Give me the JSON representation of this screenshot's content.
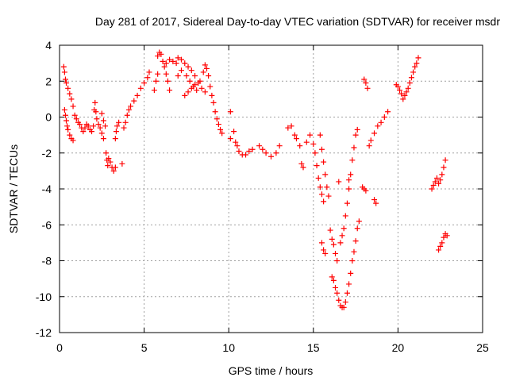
{
  "chart_data": {
    "type": "scatter",
    "title": "Day 281 of 2017, Sidereal Day-to-day VTEC variation (SDTVAR) for receiver msdr",
    "xlabel": "GPS time / hours",
    "ylabel": "SDTVAR / TECUs",
    "xlim": [
      0,
      25
    ],
    "ylim": [
      -12,
      4
    ],
    "xticks": [
      0,
      5,
      10,
      15,
      20,
      25
    ],
    "yticks": [
      -12,
      -10,
      -8,
      -6,
      -4,
      -2,
      0,
      2,
      4
    ],
    "xtick_labels": [
      "0",
      "5",
      "10",
      "15",
      "20",
      "25"
    ],
    "ytick_labels": [
      "-12",
      "-10",
      "-8",
      "-6",
      "-4",
      "-2",
      "0",
      "2",
      "4"
    ],
    "grid": true,
    "marker": "plus",
    "color": "#ff0000",
    "series": [
      {
        "points": [
          [
            0.25,
            2.8
          ],
          [
            0.3,
            2.5
          ],
          [
            0.35,
            2.1
          ],
          [
            0.4,
            1.9
          ],
          [
            0.5,
            1.6
          ],
          [
            0.6,
            1.3
          ],
          [
            0.7,
            1.0
          ],
          [
            0.8,
            0.6
          ],
          [
            0.3,
            0.4
          ],
          [
            0.35,
            0.1
          ],
          [
            0.4,
            -0.2
          ],
          [
            0.45,
            -0.5
          ],
          [
            0.5,
            -0.7
          ],
          [
            0.6,
            -1.0
          ],
          [
            0.7,
            -1.2
          ],
          [
            0.8,
            -1.3
          ],
          [
            0.9,
            0.1
          ],
          [
            1.0,
            -0.1
          ],
          [
            1.1,
            -0.3
          ],
          [
            1.2,
            -0.4
          ],
          [
            1.3,
            -0.6
          ],
          [
            1.4,
            -0.8
          ],
          [
            1.5,
            -0.6
          ],
          [
            1.6,
            -0.4
          ],
          [
            1.7,
            -0.5
          ],
          [
            1.8,
            -0.7
          ],
          [
            1.9,
            -0.8
          ],
          [
            2.0,
            -0.5
          ],
          [
            2.05,
            0.4
          ],
          [
            2.1,
            0.8
          ],
          [
            2.15,
            0.3
          ],
          [
            2.2,
            -0.1
          ],
          [
            2.3,
            -0.4
          ],
          [
            2.4,
            -0.6
          ],
          [
            2.5,
            -0.9
          ],
          [
            2.6,
            -1.2
          ],
          [
            2.5,
            0.2
          ],
          [
            2.6,
            -0.2
          ],
          [
            2.7,
            -0.5
          ],
          [
            2.75,
            -2.0
          ],
          [
            2.8,
            -2.4
          ],
          [
            2.85,
            -2.7
          ],
          [
            2.9,
            -2.3
          ],
          [
            3.0,
            -2.5
          ],
          [
            3.1,
            -2.8
          ],
          [
            3.2,
            -3.0
          ],
          [
            3.3,
            -2.8
          ],
          [
            3.3,
            -1.2
          ],
          [
            3.35,
            -0.8
          ],
          [
            3.4,
            -0.5
          ],
          [
            3.5,
            -0.3
          ],
          [
            3.7,
            -2.6
          ],
          [
            3.8,
            -0.6
          ],
          [
            3.9,
            -0.3
          ],
          [
            4.0,
            0.1
          ],
          [
            4.1,
            0.4
          ],
          [
            4.2,
            0.6
          ],
          [
            4.4,
            0.9
          ],
          [
            4.6,
            1.2
          ],
          [
            4.8,
            1.6
          ],
          [
            5.0,
            1.9
          ],
          [
            5.2,
            2.2
          ],
          [
            5.3,
            2.5
          ],
          [
            5.6,
            1.5
          ],
          [
            5.7,
            2.0
          ],
          [
            5.8,
            2.4
          ],
          [
            5.8,
            3.4
          ],
          [
            5.9,
            3.6
          ],
          [
            6.0,
            3.5
          ],
          [
            6.1,
            3.1
          ],
          [
            6.2,
            2.8
          ],
          [
            6.3,
            2.4
          ],
          [
            6.4,
            2.0
          ],
          [
            6.5,
            1.5
          ],
          [
            6.3,
            3.0
          ],
          [
            6.5,
            3.2
          ],
          [
            6.7,
            3.1
          ],
          [
            6.9,
            3.0
          ],
          [
            7.0,
            3.3
          ],
          [
            7.2,
            3.2
          ],
          [
            7.4,
            3.0
          ],
          [
            7.6,
            2.8
          ],
          [
            7.8,
            2.6
          ],
          [
            8.0,
            2.3
          ],
          [
            8.2,
            1.9
          ],
          [
            8.4,
            1.6
          ],
          [
            8.6,
            1.4
          ],
          [
            7.0,
            2.3
          ],
          [
            7.2,
            2.6
          ],
          [
            7.5,
            2.3
          ],
          [
            7.7,
            2.0
          ],
          [
            7.9,
            1.7
          ],
          [
            8.1,
            1.5
          ],
          [
            7.4,
            1.2
          ],
          [
            7.6,
            1.4
          ],
          [
            7.8,
            1.6
          ],
          [
            8.0,
            1.8
          ],
          [
            8.3,
            2.0
          ],
          [
            8.5,
            2.5
          ],
          [
            8.6,
            2.9
          ],
          [
            8.7,
            2.7
          ],
          [
            8.8,
            2.3
          ],
          [
            8.9,
            1.7
          ],
          [
            9.0,
            1.2
          ],
          [
            9.1,
            0.8
          ],
          [
            9.2,
            0.3
          ],
          [
            9.3,
            -0.1
          ],
          [
            9.4,
            -0.4
          ],
          [
            9.5,
            -0.7
          ],
          [
            9.6,
            -0.9
          ],
          [
            10.1,
            -1.2
          ],
          [
            10.1,
            0.3
          ],
          [
            10.3,
            -0.8
          ],
          [
            10.4,
            -1.4
          ],
          [
            10.5,
            -1.6
          ],
          [
            10.6,
            -1.9
          ],
          [
            10.8,
            -2.1
          ],
          [
            11.0,
            -2.1
          ],
          [
            11.2,
            -1.9
          ],
          [
            11.4,
            -1.8
          ],
          [
            11.8,
            -1.6
          ],
          [
            12.0,
            -1.8
          ],
          [
            12.2,
            -2.0
          ],
          [
            12.5,
            -2.2
          ],
          [
            12.8,
            -2.0
          ],
          [
            13.0,
            -1.6
          ],
          [
            13.5,
            -0.6
          ],
          [
            13.7,
            -0.5
          ],
          [
            13.9,
            -1.0
          ],
          [
            14.0,
            -1.2
          ],
          [
            14.2,
            -1.6
          ],
          [
            14.3,
            -2.6
          ],
          [
            14.4,
            -2.8
          ],
          [
            14.6,
            -1.4
          ],
          [
            14.8,
            -1.0
          ],
          [
            15.0,
            -1.5
          ],
          [
            15.1,
            -2.0
          ],
          [
            15.2,
            -2.7
          ],
          [
            15.3,
            -3.4
          ],
          [
            15.4,
            -3.9
          ],
          [
            15.5,
            -4.3
          ],
          [
            15.6,
            -4.7
          ],
          [
            15.4,
            -1.0
          ],
          [
            15.5,
            -1.8
          ],
          [
            15.6,
            -2.5
          ],
          [
            15.7,
            -3.2
          ],
          [
            15.8,
            -3.9
          ],
          [
            15.9,
            -4.4
          ],
          [
            15.5,
            -7.0
          ],
          [
            15.6,
            -7.4
          ],
          [
            15.7,
            -7.6
          ],
          [
            16.0,
            -6.3
          ],
          [
            16.1,
            -6.8
          ],
          [
            16.2,
            -7.1
          ],
          [
            16.3,
            -7.6
          ],
          [
            16.4,
            -8.0
          ],
          [
            16.1,
            -8.9
          ],
          [
            16.2,
            -9.1
          ],
          [
            16.3,
            -9.5
          ],
          [
            16.4,
            -9.8
          ],
          [
            16.5,
            -10.2
          ],
          [
            16.6,
            -10.5
          ],
          [
            16.7,
            -10.6
          ],
          [
            16.8,
            -10.6
          ],
          [
            16.9,
            -10.3
          ],
          [
            17.0,
            -9.8
          ],
          [
            17.1,
            -9.3
          ],
          [
            17.2,
            -8.7
          ],
          [
            17.3,
            -8.0
          ],
          [
            17.4,
            -7.5
          ],
          [
            17.5,
            -6.9
          ],
          [
            17.6,
            -6.2
          ],
          [
            17.7,
            -5.8
          ],
          [
            16.6,
            -7.0
          ],
          [
            16.7,
            -6.6
          ],
          [
            16.8,
            -6.2
          ],
          [
            16.9,
            -5.5
          ],
          [
            17.0,
            -4.8
          ],
          [
            17.1,
            -4.0
          ],
          [
            17.2,
            -3.2
          ],
          [
            17.3,
            -2.4
          ],
          [
            17.4,
            -1.7
          ],
          [
            17.5,
            -1.0
          ],
          [
            17.6,
            -0.7
          ],
          [
            16.5,
            -3.6
          ],
          [
            17.1,
            -3.5
          ],
          [
            18.0,
            2.1
          ],
          [
            18.1,
            1.9
          ],
          [
            18.2,
            1.6
          ],
          [
            17.9,
            -3.9
          ],
          [
            18.0,
            -4.0
          ],
          [
            18.1,
            -4.1
          ],
          [
            18.6,
            -4.6
          ],
          [
            18.7,
            -4.8
          ],
          [
            18.3,
            -1.6
          ],
          [
            18.4,
            -1.3
          ],
          [
            18.6,
            -0.9
          ],
          [
            18.8,
            -0.5
          ],
          [
            19.0,
            -0.3
          ],
          [
            19.2,
            0.0
          ],
          [
            19.4,
            0.3
          ],
          [
            19.9,
            1.8
          ],
          [
            20.0,
            1.7
          ],
          [
            20.1,
            1.5
          ],
          [
            20.2,
            1.3
          ],
          [
            20.3,
            1.0
          ],
          [
            20.4,
            1.2
          ],
          [
            20.5,
            1.4
          ],
          [
            20.6,
            1.6
          ],
          [
            20.7,
            1.9
          ],
          [
            20.8,
            2.2
          ],
          [
            20.9,
            2.5
          ],
          [
            21.0,
            2.8
          ],
          [
            21.1,
            3.0
          ],
          [
            21.2,
            3.3
          ],
          [
            22.0,
            -4.0
          ],
          [
            22.1,
            -3.8
          ],
          [
            22.2,
            -3.6
          ],
          [
            22.3,
            -3.4
          ],
          [
            22.4,
            -3.7
          ],
          [
            22.5,
            -3.5
          ],
          [
            22.6,
            -3.2
          ],
          [
            22.7,
            -2.8
          ],
          [
            22.8,
            -2.4
          ],
          [
            22.4,
            -7.4
          ],
          [
            22.5,
            -7.2
          ],
          [
            22.6,
            -7.0
          ],
          [
            22.7,
            -6.7
          ],
          [
            22.8,
            -6.5
          ],
          [
            22.9,
            -6.6
          ]
        ]
      }
    ]
  }
}
